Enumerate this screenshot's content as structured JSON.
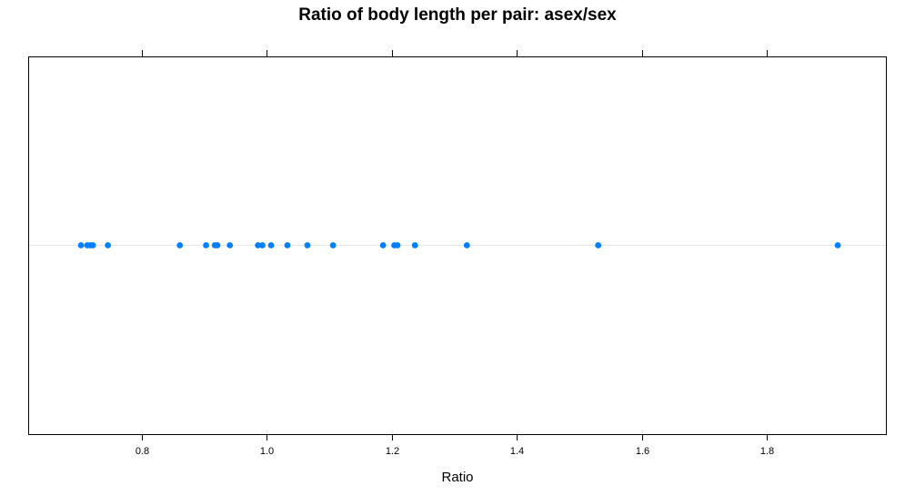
{
  "chart_data": {
    "type": "scatter",
    "title": "Ratio of body length per pair: asex/sex",
    "xlabel": "Ratio",
    "ylabel": "",
    "xlim": [
      0.62,
      1.99
    ],
    "x_ticks": [
      0.8,
      1.0,
      1.2,
      1.4,
      1.6,
      1.8
    ],
    "x_tick_labels": [
      "0.8",
      "1.0",
      "1.2",
      "1.4",
      "1.6",
      "1.8"
    ],
    "ticks_top_and_bottom": true,
    "grid": false,
    "reference_line": true,
    "point_color": "#0080ff",
    "reference_line_color": "#e6e6e6",
    "x": [
      0.703,
      0.713,
      0.718,
      0.722,
      0.746,
      0.861,
      0.903,
      0.917,
      0.921,
      0.941,
      0.986,
      0.993,
      1.007,
      1.033,
      1.065,
      1.106,
      1.186,
      1.204,
      1.209,
      1.237,
      1.32,
      1.53,
      1.913
    ]
  }
}
